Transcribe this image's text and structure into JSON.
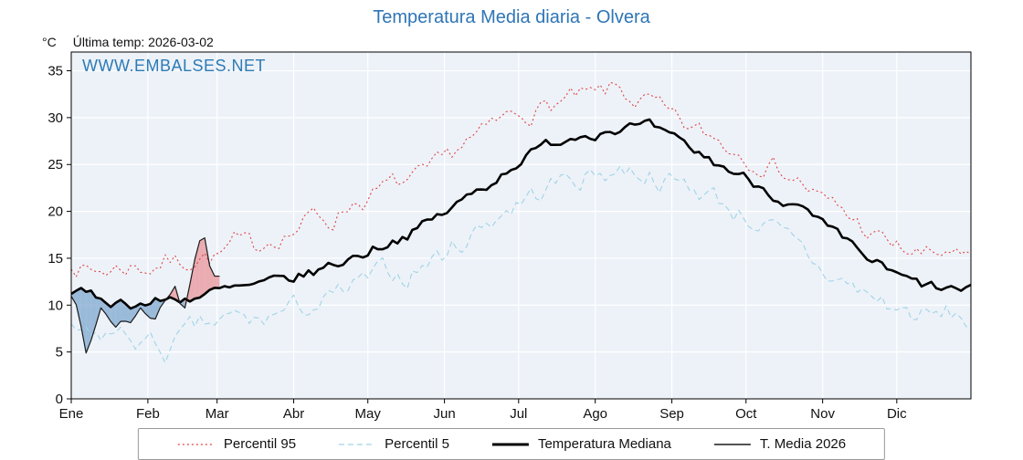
{
  "title": "Temperatura Media diaria - Olvera",
  "header": {
    "unit_label": "°C",
    "last_temp": "Última temp: 2026-03-02"
  },
  "watermark": "WWW.EMBALSES.NET",
  "colors": {
    "title": "#2e75b6",
    "watermark": "#2d7bb5",
    "plot_bg": "#edf2f8",
    "grid": "#ffffff",
    "frame": "#000000",
    "tick_text": "#111111",
    "fill_above": "#e8868a",
    "fill_below": "#6d9bc7"
  },
  "chart_data": {
    "type": "line",
    "title": "Temperatura Media diaria - Olvera",
    "xlabel": "",
    "ylabel": "°C",
    "ylim": [
      0,
      37
    ],
    "yticks": [
      0,
      5,
      10,
      15,
      20,
      25,
      30,
      35
    ],
    "months": [
      "Ene",
      "Feb",
      "Mar",
      "Abr",
      "May",
      "Jun",
      "Jul",
      "Ago",
      "Sep",
      "Oct",
      "Nov",
      "Dic"
    ],
    "month_start_days": [
      0,
      31,
      59,
      90,
      120,
      151,
      181,
      212,
      243,
      273,
      304,
      334
    ],
    "days_in_year": 365,
    "noise_seed": 7,
    "grid": true,
    "legend_position": "bottom",
    "series": [
      {
        "name": "Percentil 95",
        "color": "#dd4444",
        "dash": "2,3",
        "width": 1.1,
        "jitter": 1.0,
        "range": [
          0,
          364
        ],
        "anchors": [
          [
            0,
            14.8
          ],
          [
            8,
            13.5
          ],
          [
            16,
            13.8
          ],
          [
            24,
            14.2
          ],
          [
            31,
            14.0
          ],
          [
            38,
            14.8
          ],
          [
            45,
            14.5
          ],
          [
            52,
            15.5
          ],
          [
            59,
            15.0
          ],
          [
            66,
            16.5
          ],
          [
            74,
            16.0
          ],
          [
            82,
            17.5
          ],
          [
            90,
            18.0
          ],
          [
            98,
            19.5
          ],
          [
            105,
            19.0
          ],
          [
            113,
            21.0
          ],
          [
            120,
            21.5
          ],
          [
            128,
            22.5
          ],
          [
            135,
            23.0
          ],
          [
            143,
            23.5
          ],
          [
            151,
            25.0
          ],
          [
            159,
            27.5
          ],
          [
            166,
            28.0
          ],
          [
            174,
            29.5
          ],
          [
            181,
            30.5
          ],
          [
            189,
            31.0
          ],
          [
            196,
            31.5
          ],
          [
            204,
            32.0
          ],
          [
            212,
            32.0
          ],
          [
            220,
            33.0
          ],
          [
            227,
            32.0
          ],
          [
            235,
            31.5
          ],
          [
            243,
            29.5
          ],
          [
            251,
            28.5
          ],
          [
            258,
            28.0
          ],
          [
            266,
            27.0
          ],
          [
            273,
            26.0
          ],
          [
            281,
            25.5
          ],
          [
            288,
            24.5
          ],
          [
            296,
            23.0
          ],
          [
            304,
            21.0
          ],
          [
            312,
            20.0
          ],
          [
            319,
            18.5
          ],
          [
            327,
            17.0
          ],
          [
            334,
            16.0
          ],
          [
            342,
            15.5
          ],
          [
            349,
            15.0
          ],
          [
            356,
            16.0
          ],
          [
            364,
            14.0
          ]
        ]
      },
      {
        "name": "Percentil 5",
        "color": "#9fd3e6",
        "dash": "6,4",
        "width": 1.1,
        "jitter": 1.1,
        "range": [
          0,
          364
        ],
        "anchors": [
          [
            0,
            8.0
          ],
          [
            8,
            6.0
          ],
          [
            16,
            7.0
          ],
          [
            24,
            6.5
          ],
          [
            31,
            6.0
          ],
          [
            38,
            5.0
          ],
          [
            45,
            6.5
          ],
          [
            52,
            7.5
          ],
          [
            59,
            8.0
          ],
          [
            66,
            8.5
          ],
          [
            74,
            8.0
          ],
          [
            82,
            9.0
          ],
          [
            90,
            9.5
          ],
          [
            98,
            10.0
          ],
          [
            105,
            10.5
          ],
          [
            113,
            11.5
          ],
          [
            120,
            12.5
          ],
          [
            128,
            13.5
          ],
          [
            135,
            13.0
          ],
          [
            143,
            14.5
          ],
          [
            151,
            15.5
          ],
          [
            159,
            17.0
          ],
          [
            166,
            18.5
          ],
          [
            174,
            20.0
          ],
          [
            181,
            21.0
          ],
          [
            189,
            22.0
          ],
          [
            196,
            23.0
          ],
          [
            204,
            23.5
          ],
          [
            212,
            24.0
          ],
          [
            220,
            24.5
          ],
          [
            227,
            24.5
          ],
          [
            235,
            24.0
          ],
          [
            243,
            23.0
          ],
          [
            251,
            22.5
          ],
          [
            258,
            22.0
          ],
          [
            266,
            20.5
          ],
          [
            273,
            19.5
          ],
          [
            281,
            18.5
          ],
          [
            288,
            17.0
          ],
          [
            296,
            15.5
          ],
          [
            304,
            13.5
          ],
          [
            312,
            12.5
          ],
          [
            319,
            11.5
          ],
          [
            327,
            10.5
          ],
          [
            334,
            9.5
          ],
          [
            342,
            9.0
          ],
          [
            349,
            8.5
          ],
          [
            356,
            9.0
          ],
          [
            364,
            8.0
          ]
        ]
      },
      {
        "name": "Temperatura Mediana",
        "color": "#000000",
        "dash": "",
        "width": 2.6,
        "jitter": 0.55,
        "range": [
          0,
          364
        ],
        "anchors": [
          [
            0,
            11.5
          ],
          [
            8,
            10.8
          ],
          [
            16,
            10.5
          ],
          [
            24,
            10.3
          ],
          [
            31,
            10.2
          ],
          [
            38,
            10.5
          ],
          [
            45,
            10.8
          ],
          [
            52,
            11.0
          ],
          [
            59,
            11.4
          ],
          [
            66,
            11.6
          ],
          [
            74,
            11.9
          ],
          [
            82,
            12.3
          ],
          [
            90,
            12.8
          ],
          [
            98,
            13.5
          ],
          [
            105,
            14.2
          ],
          [
            113,
            15.0
          ],
          [
            120,
            15.8
          ],
          [
            128,
            16.8
          ],
          [
            135,
            17.5
          ],
          [
            143,
            18.5
          ],
          [
            151,
            19.8
          ],
          [
            159,
            21.2
          ],
          [
            166,
            22.5
          ],
          [
            174,
            24.0
          ],
          [
            181,
            25.5
          ],
          [
            189,
            26.5
          ],
          [
            196,
            27.5
          ],
          [
            204,
            28.2
          ],
          [
            212,
            28.6
          ],
          [
            220,
            29.0
          ],
          [
            227,
            29.0
          ],
          [
            235,
            28.8
          ],
          [
            243,
            27.5
          ],
          [
            251,
            26.5
          ],
          [
            258,
            25.5
          ],
          [
            266,
            24.5
          ],
          [
            273,
            23.5
          ],
          [
            281,
            22.5
          ],
          [
            288,
            21.3
          ],
          [
            296,
            20.0
          ],
          [
            304,
            18.3
          ],
          [
            312,
            16.8
          ],
          [
            319,
            15.5
          ],
          [
            327,
            14.2
          ],
          [
            334,
            13.0
          ],
          [
            342,
            12.2
          ],
          [
            349,
            11.8
          ],
          [
            356,
            11.6
          ],
          [
            364,
            11.3
          ]
        ]
      },
      {
        "name": "T. Media 2026",
        "color": "#1a1a1a",
        "dash": "",
        "width": 1.2,
        "jitter": 0.5,
        "range": [
          0,
          60
        ],
        "anchors": [
          [
            0,
            11.3
          ],
          [
            3,
            9.5
          ],
          [
            6,
            5.0
          ],
          [
            9,
            7.0
          ],
          [
            12,
            9.8
          ],
          [
            15,
            8.5
          ],
          [
            18,
            7.2
          ],
          [
            21,
            9.0
          ],
          [
            24,
            8.0
          ],
          [
            27,
            9.8
          ],
          [
            30,
            9.2
          ],
          [
            33,
            8.2
          ],
          [
            36,
            9.5
          ],
          [
            39,
            11.2
          ],
          [
            42,
            12.3
          ],
          [
            45,
            9.2
          ],
          [
            48,
            12.0
          ],
          [
            51,
            16.8
          ],
          [
            54,
            17.2
          ],
          [
            57,
            13.2
          ],
          [
            60,
            12.6
          ]
        ]
      }
    ],
    "fill_between": {
      "series_a": "T. Media 2026",
      "series_b": "Temperatura Mediana",
      "above_color": "#e8868a",
      "below_color": "#6d9bc7",
      "opacity": 0.65
    },
    "legend": [
      "Percentil 95",
      "Percentil 5",
      "Temperatura Mediana",
      "T. Media 2026"
    ]
  }
}
